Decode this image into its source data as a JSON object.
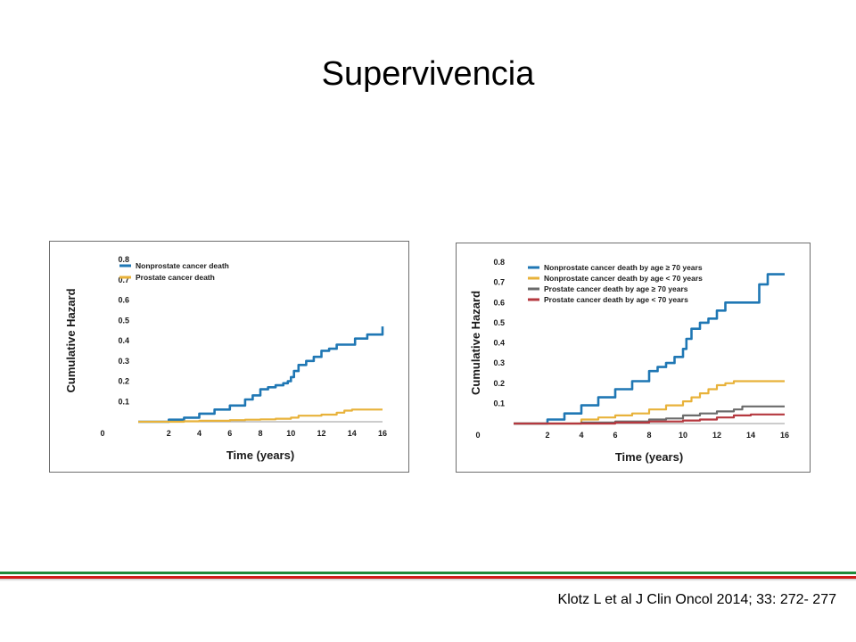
{
  "slide": {
    "title": "Supervivencia",
    "citation": "Klotz L et al J Clin Oncol 2014; 33: 272- 277",
    "divider_colors": [
      "#1e8a3a",
      "#d11a1a"
    ]
  },
  "chart_data": [
    {
      "type": "line",
      "xlabel": "Time (years)",
      "ylabel": "Cumulative Hazard",
      "xlim": [
        0,
        16
      ],
      "ylim": [
        0,
        0.8
      ],
      "xticks": [
        0,
        2,
        4,
        6,
        8,
        10,
        12,
        14,
        16
      ],
      "yticks": [
        0.1,
        0.2,
        0.3,
        0.4,
        0.5,
        0.6,
        0.7,
        0.8
      ],
      "legend_position": "top-left",
      "grid": false,
      "series": [
        {
          "name": "Nonprostate cancer death",
          "color": "#1f77b4",
          "x": [
            0,
            1.5,
            2,
            3,
            4,
            5,
            6,
            7,
            7.5,
            8,
            8.5,
            9,
            9.5,
            9.8,
            10,
            10.2,
            10.5,
            11,
            11.5,
            12,
            12.5,
            13,
            14,
            14.2,
            15,
            15.9,
            16,
            16
          ],
          "y": [
            0,
            0,
            0.01,
            0.02,
            0.04,
            0.06,
            0.08,
            0.11,
            0.13,
            0.16,
            0.17,
            0.18,
            0.19,
            0.2,
            0.22,
            0.25,
            0.28,
            0.3,
            0.32,
            0.35,
            0.36,
            0.38,
            0.38,
            0.41,
            0.43,
            0.43,
            0.43,
            0.47
          ]
        },
        {
          "name": "Prostate cancer death",
          "color": "#e8b23a",
          "x": [
            0,
            2,
            3,
            4,
            6,
            7,
            8,
            9,
            10,
            10.5,
            12,
            13,
            13.5,
            14,
            15,
            16
          ],
          "y": [
            0,
            0,
            0.002,
            0.005,
            0.008,
            0.01,
            0.012,
            0.015,
            0.02,
            0.03,
            0.035,
            0.045,
            0.055,
            0.06,
            0.06,
            0.06
          ]
        }
      ]
    },
    {
      "type": "line",
      "xlabel": "Time (years)",
      "ylabel": "Cumulative Hazard",
      "xlim": [
        0,
        16
      ],
      "ylim": [
        0,
        0.8
      ],
      "xticks": [
        0,
        2,
        4,
        6,
        8,
        10,
        12,
        14,
        16
      ],
      "yticks": [
        0.1,
        0.2,
        0.3,
        0.4,
        0.5,
        0.6,
        0.7,
        0.8
      ],
      "legend_position": "top-left",
      "grid": false,
      "series": [
        {
          "name": "Nonprostate cancer death by age ≥ 70 years",
          "color": "#1f77b4",
          "x": [
            0,
            1.5,
            2,
            3,
            4,
            5,
            6,
            7,
            8,
            8.5,
            9,
            9.5,
            10,
            10.2,
            10.5,
            11,
            11.5,
            12,
            12.5,
            13,
            14,
            14.5,
            15,
            16
          ],
          "y": [
            0,
            0,
            0.02,
            0.05,
            0.09,
            0.13,
            0.17,
            0.21,
            0.26,
            0.28,
            0.3,
            0.33,
            0.37,
            0.42,
            0.47,
            0.5,
            0.52,
            0.56,
            0.6,
            0.6,
            0.6,
            0.69,
            0.74,
            0.74
          ]
        },
        {
          "name": "Nonprostate cancer death by age < 70 years",
          "color": "#e8b23a",
          "x": [
            0,
            3,
            4,
            5,
            6,
            7,
            8,
            9,
            10,
            10.5,
            11,
            11.5,
            12,
            12.5,
            13,
            14,
            15,
            16
          ],
          "y": [
            0,
            0,
            0.02,
            0.03,
            0.04,
            0.05,
            0.07,
            0.09,
            0.11,
            0.13,
            0.15,
            0.17,
            0.19,
            0.2,
            0.21,
            0.21,
            0.21,
            0.21
          ]
        },
        {
          "name": "Prostate cancer death by age ≥ 70 years",
          "color": "#6b6b6b",
          "x": [
            0,
            3,
            4,
            6,
            8,
            9,
            10,
            11,
            12,
            13,
            13.5,
            14,
            16
          ],
          "y": [
            0,
            0,
            0.005,
            0.01,
            0.02,
            0.025,
            0.04,
            0.05,
            0.06,
            0.07,
            0.085,
            0.085,
            0.085
          ]
        },
        {
          "name": "Prostate cancer death by age < 70 years",
          "color": "#b5383f",
          "x": [
            0,
            4,
            6,
            8,
            10,
            11,
            12,
            13,
            14,
            16
          ],
          "y": [
            0,
            0,
            0.005,
            0.01,
            0.015,
            0.02,
            0.03,
            0.04,
            0.045,
            0.045
          ]
        }
      ]
    }
  ]
}
